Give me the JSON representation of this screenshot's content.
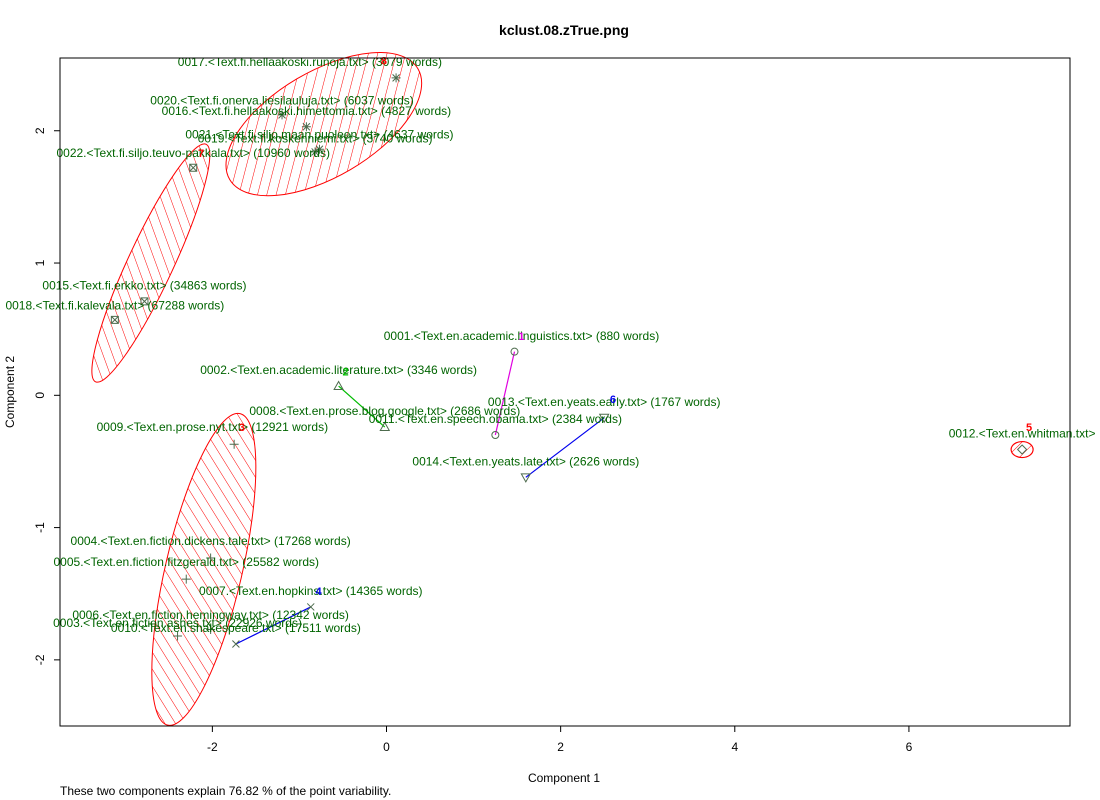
{
  "chart_data": {
    "type": "scatter",
    "title": "kclust.08.zTrue.png",
    "xlabel": "Component 1",
    "ylabel": "Component 2",
    "xlim": [
      -3.75,
      7.85
    ],
    "ylim": [
      -2.5,
      2.55
    ],
    "x_ticks": [
      -2,
      0,
      2,
      4,
      6
    ],
    "x_tick_labels": [
      "-2",
      "0",
      "2",
      "4",
      "6"
    ],
    "y_ticks": [
      -2,
      -1,
      0,
      1,
      2
    ],
    "y_tick_labels": [
      "-2",
      "-1",
      "0",
      "1",
      "2"
    ],
    "grid": false,
    "legend": "none",
    "footnote": "These two components explain 76.82 % of the point variability.",
    "points": [
      {
        "label": "0001.<Text.en.academic.linguistics.txt> (880 words)",
        "x": 1.47,
        "y": 0.33,
        "cluster": 1,
        "shape": "circle",
        "lx": 1.55,
        "ly": 0.42
      },
      {
        "label": "0011.<Text.en.speech.obama.txt> (2384 words)",
        "x": 1.25,
        "y": -0.3,
        "cluster": 1,
        "shape": "circle",
        "lx": 1.25,
        "ly": -0.21
      },
      {
        "label": "0002.<Text.en.academic.literature.txt> (3346 words)",
        "x": -0.55,
        "y": 0.07,
        "cluster": 2,
        "shape": "triangle",
        "lx": -0.55,
        "ly": 0.16
      },
      {
        "label": "0008.<Text.en.prose.blog.google.txt> (2686 words)",
        "x": -0.02,
        "y": -0.24,
        "cluster": 2,
        "shape": "triangle",
        "lx": -0.02,
        "ly": -0.15
      },
      {
        "label": "0009.<Text.en.prose.nyt.txt> (12921 words)",
        "x": -1.75,
        "y": -0.37,
        "cluster": 3,
        "shape": "plus",
        "lx": -2.0,
        "ly": -0.27
      },
      {
        "label": "0004.<Text.en.fiction.dickens.tale.txt> (17268 words)",
        "x": -2.02,
        "y": -1.23,
        "cluster": 3,
        "shape": "plus",
        "lx": -2.02,
        "ly": -1.13
      },
      {
        "label": "0005.<Text.en.fiction.fitzgerald.txt> (25582 words)",
        "x": -2.3,
        "y": -1.39,
        "cluster": 3,
        "shape": "plus",
        "lx": -2.3,
        "ly": -1.29
      },
      {
        "label": "0006.<Text.en.fiction.hemingway.txt> (12342 words)",
        "x": -2.02,
        "y": -1.77,
        "cluster": 3,
        "shape": "plus",
        "lx": -2.02,
        "ly": -1.69
      },
      {
        "label": "0003.<Text.en.fiction.ashes.txt> (22926 words)",
        "x": -2.4,
        "y": -1.82,
        "cluster": 3,
        "shape": "plus",
        "lx": -2.4,
        "ly": -1.75
      },
      {
        "label": "0010.<Text.en.shakespeare.txt> (17511 words)",
        "x": -1.73,
        "y": -1.88,
        "cluster": 4,
        "shape": "cross",
        "lx": -1.73,
        "ly": -1.79
      },
      {
        "label": "0007.<Text.en.hopkins.txt> (14365 words)",
        "x": -0.87,
        "y": -1.6,
        "cluster": 4,
        "shape": "cross",
        "lx": -0.87,
        "ly": -1.51
      },
      {
        "label": "0012.<Text.en.whitman.txt>",
        "x": 7.3,
        "y": -0.41,
        "cluster": 5,
        "shape": "diamond",
        "lx": 7.3,
        "ly": -0.32
      },
      {
        "label": "0013.<Text.en.yeats.early.txt> (1767 words)",
        "x": 2.5,
        "y": -0.17,
        "cluster": 6,
        "shape": "down-triangle",
        "lx": 2.5,
        "ly": -0.08
      },
      {
        "label": "0014.<Text.en.yeats.late.txt> (2626 words)",
        "x": 1.6,
        "y": -0.62,
        "cluster": 6,
        "shape": "down-triangle",
        "lx": 1.6,
        "ly": -0.53
      },
      {
        "label": "0022.<Text.fi.siljo.teuvo-pakkala.txt> (10960 words)",
        "x": -2.22,
        "y": 1.72,
        "cluster": 7,
        "shape": "square-cross",
        "lx": -2.22,
        "ly": 1.8
      },
      {
        "label": "0015.<Text.fi.erkko.txt> (34863 words)",
        "x": -2.78,
        "y": 0.71,
        "cluster": 7,
        "shape": "square-cross",
        "lx": -2.78,
        "ly": 0.8
      },
      {
        "label": "0018.<Text.fi.kalevala.txt> (67288 words)",
        "x": -3.12,
        "y": 0.57,
        "cluster": 7,
        "shape": "square-cross",
        "lx": -3.12,
        "ly": 0.65
      },
      {
        "label": "0017.<Text.fi.hellaakoski.runoja.txt> (3079 words)",
        "x": 0.11,
        "y": 2.4,
        "cluster": 8,
        "shape": "asterisk",
        "lx": -0.88,
        "ly": 2.49
      },
      {
        "label": "0020.<Text.fi.onerva.liesilauluja.txt> (6037 words)",
        "x": -1.2,
        "y": 2.12,
        "cluster": 8,
        "shape": "asterisk",
        "lx": -1.2,
        "ly": 2.2
      },
      {
        "label": "0016.<Text.fi.hellaakoski.himettomia.txt> (4827 words)",
        "x": -0.92,
        "y": 2.03,
        "cluster": 8,
        "shape": "asterisk",
        "lx": -0.92,
        "ly": 2.12
      },
      {
        "label": "0021.<Text.fi.siljo.maan.puoleen.txt> (4637 words)",
        "x": -0.77,
        "y": 1.86,
        "cluster": 8,
        "shape": "asterisk",
        "lx": -0.77,
        "ly": 1.94
      },
      {
        "label": "0019.<Text.fi.koskenniemi.txt> (3740 words)",
        "x": -0.82,
        "y": 1.84,
        "cluster": 8,
        "shape": "asterisk",
        "lx": -0.82,
        "ly": 1.91
      }
    ],
    "clusters": [
      {
        "id": 1,
        "kind": "segment",
        "color": "#e000e0",
        "label_x": 1.55,
        "label_y": 0.42
      },
      {
        "id": 2,
        "kind": "segment",
        "color": "#00bb00",
        "label_x": -0.47,
        "label_y": 0.15
      },
      {
        "id": 3,
        "kind": "ellipse",
        "color": "#ff0000",
        "label_x": -1.66,
        "label_y": -0.27
      },
      {
        "id": 4,
        "kind": "segment",
        "color": "#0000ee",
        "label_x": -0.78,
        "label_y": -1.51
      },
      {
        "id": 5,
        "kind": "ellipse",
        "color": "#ff0000",
        "label_x": 7.38,
        "label_y": -0.27
      },
      {
        "id": 6,
        "kind": "segment",
        "color": "#0000ee",
        "label_x": 2.6,
        "label_y": -0.06
      },
      {
        "id": 7,
        "kind": "ellipse",
        "color": "#ff0000",
        "label_x": -2.13,
        "label_y": 1.8
      },
      {
        "id": 8,
        "kind": "ellipse",
        "color": "#ff0000",
        "label_x": -0.03,
        "label_y": 2.5
      }
    ]
  }
}
